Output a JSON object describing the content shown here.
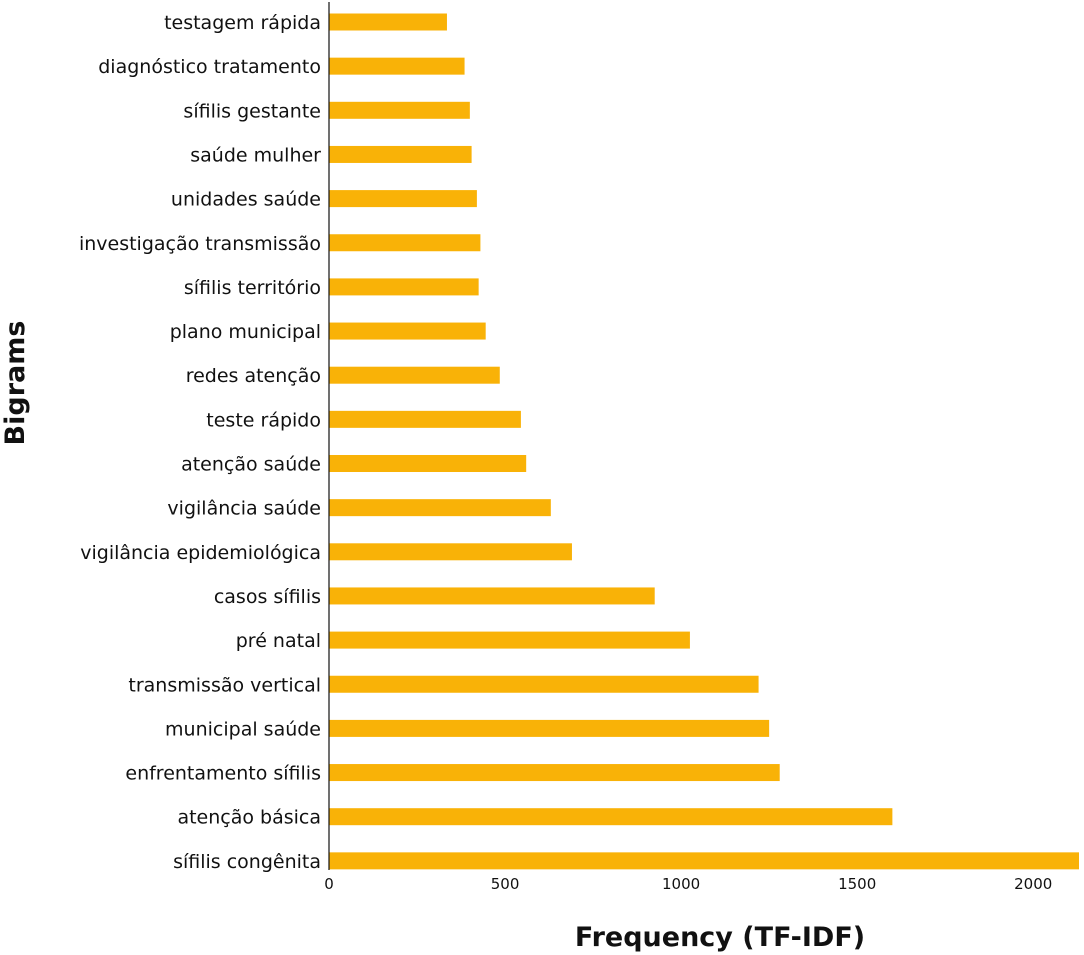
{
  "chart_data": {
    "type": "bar",
    "orientation": "horizontal",
    "xlabel": "Frequency (TF-IDF)",
    "ylabel": "Bigrams",
    "xlim": [
      0,
      2130
    ],
    "xticks": [
      0,
      500,
      1000,
      1500,
      2000
    ],
    "grid": false,
    "bar_color": "#F9B207",
    "categories": [
      "testagem rápida",
      "diagnóstico tratamento",
      "sífilis gestante",
      "saúde mulher",
      "unidades saúde",
      "investigação transmissão",
      "sífilis território",
      "plano municipal",
      "redes atenção",
      "teste rápido",
      "atenção saúde",
      "vigilância saúde",
      "vigilância epidemiológica",
      "casos sífilis",
      "pré natal",
      "transmissão vertical",
      "municipal saúde",
      "enfrentamento sífilis",
      "atenção básica",
      "sífilis congênita"
    ],
    "values": [
      335,
      385,
      400,
      405,
      420,
      430,
      425,
      445,
      485,
      545,
      560,
      630,
      690,
      925,
      1025,
      1220,
      1250,
      1280,
      1600,
      2130
    ]
  }
}
